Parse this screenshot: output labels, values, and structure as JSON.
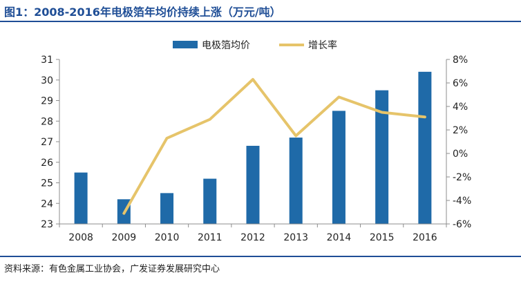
{
  "figure": {
    "title": "图1：2008-2016年电极箔年均价持续上涨（万元/吨）",
    "source": "资料来源：有色金属工业协会，广发证券发展研究中心"
  },
  "colors": {
    "bar": "#1f6aa8",
    "line": "#e6c46a",
    "title": "#1f4e96",
    "axis": "#8c8c8c"
  },
  "chart_data": {
    "type": "bar",
    "categories": [
      "2008",
      "2009",
      "2010",
      "2011",
      "2012",
      "2013",
      "2014",
      "2015",
      "2016"
    ],
    "series": [
      {
        "name": "电极箔均价",
        "type": "bar",
        "axis": "left",
        "values": [
          25.5,
          24.2,
          24.5,
          25.2,
          26.8,
          27.2,
          28.5,
          29.5,
          30.4
        ]
      },
      {
        "name": "增长率",
        "type": "line",
        "axis": "right",
        "values": [
          null,
          -5.1,
          1.3,
          2.9,
          6.3,
          1.5,
          4.8,
          3.5,
          3.1
        ]
      }
    ],
    "y_left": {
      "ylim": [
        23,
        31
      ],
      "ticks": [
        "23",
        "24",
        "25",
        "26",
        "27",
        "28",
        "29",
        "30",
        "31"
      ]
    },
    "y_right": {
      "ylim": [
        -6,
        8
      ],
      "ticks": [
        "-6%",
        "-4%",
        "-2%",
        "0%",
        "2%",
        "4%",
        "6%",
        "8%"
      ]
    },
    "legend": "top-center",
    "grid": false
  }
}
